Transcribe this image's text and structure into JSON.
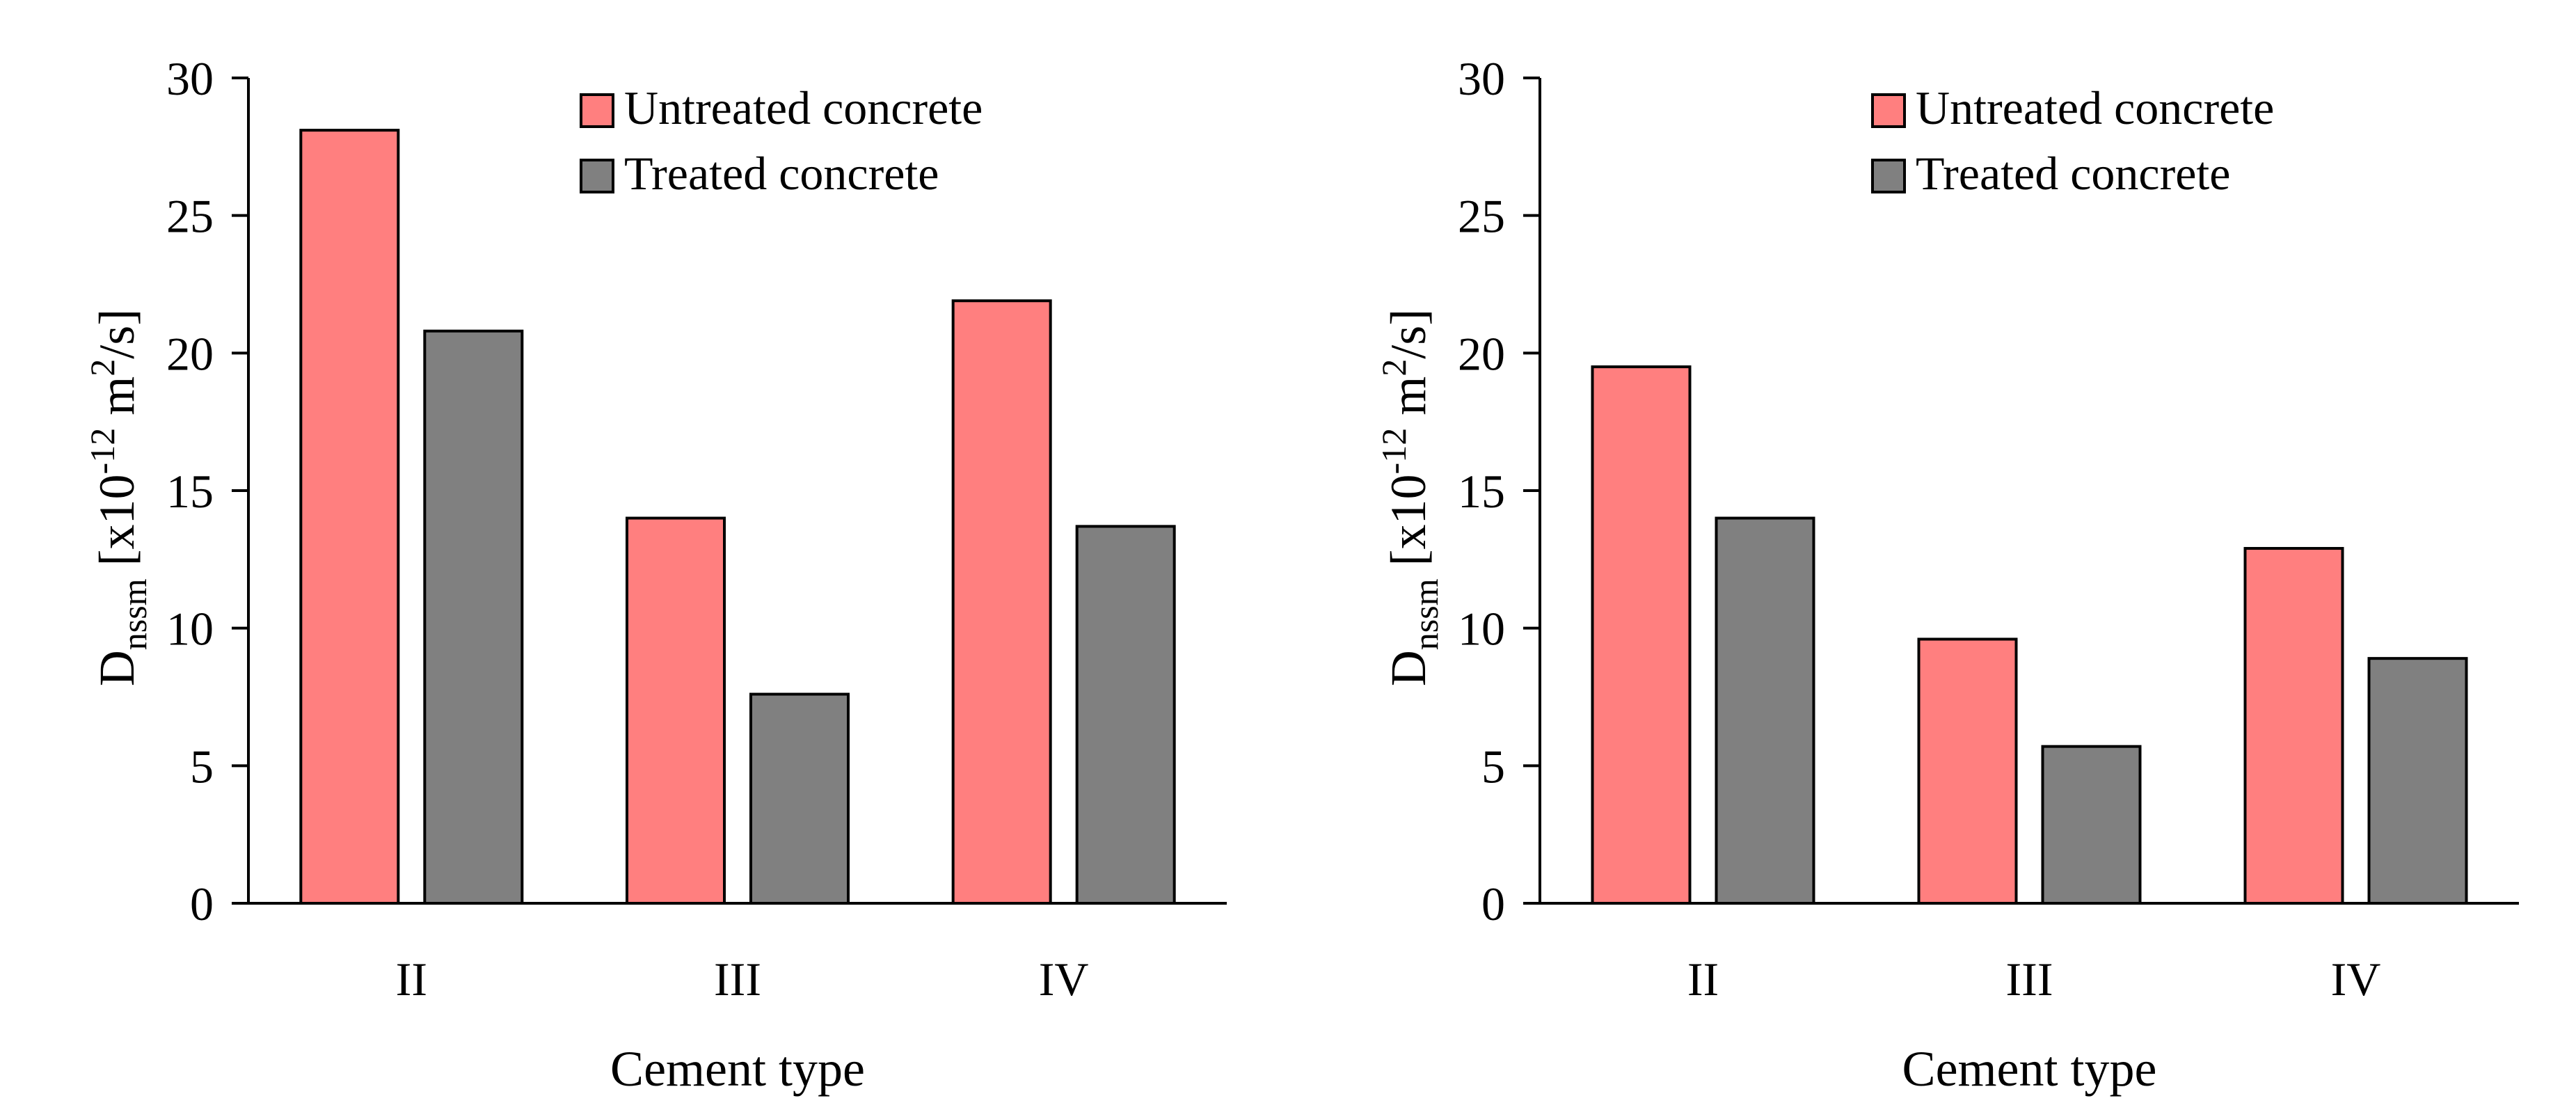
{
  "colors": {
    "untreated": "#ff7f7f",
    "treated": "#808080",
    "axis": "#000000"
  },
  "chart_data": [
    {
      "type": "bar",
      "categories": [
        "II",
        "III",
        "IV"
      ],
      "series": [
        {
          "name": "Untreated concrete",
          "values": [
            28.1,
            14.0,
            21.9
          ]
        },
        {
          "name": "Treated concrete",
          "values": [
            20.8,
            7.6,
            13.7
          ]
        }
      ],
      "xlabel": "Cement type",
      "ylabel": {
        "main": "D",
        "sub": "nssm",
        "bracket": "[x10",
        "exp": "-12",
        "unit": " m",
        "unit_exp": "2",
        "tail": "/s]"
      },
      "ylim": [
        0,
        30
      ],
      "yticks": [
        "0",
        "5",
        "10",
        "15",
        "20",
        "25",
        "30"
      ],
      "legend_position": "top-right",
      "grid": false
    },
    {
      "type": "bar",
      "categories": [
        "II",
        "III",
        "IV"
      ],
      "series": [
        {
          "name": "Untreated concrete",
          "values": [
            19.5,
            9.6,
            12.9
          ]
        },
        {
          "name": "Treated concrete",
          "values": [
            14.0,
            5.7,
            8.9
          ]
        }
      ],
      "xlabel": "Cement type",
      "ylabel": {
        "main": "D",
        "sub": "nssm",
        "bracket": "[x10",
        "exp": "-12",
        "unit": " m",
        "unit_exp": "2",
        "tail": "/s]"
      },
      "ylim": [
        0,
        30
      ],
      "yticks": [
        "0",
        "5",
        "10",
        "15",
        "20",
        "25",
        "30"
      ],
      "legend_position": "top-right",
      "grid": false
    }
  ]
}
